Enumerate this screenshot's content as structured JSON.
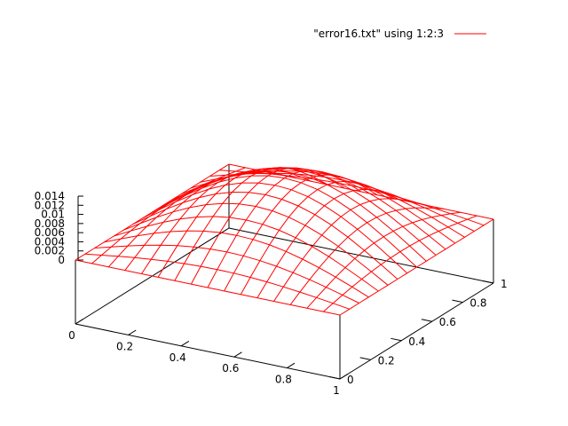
{
  "chart_data": {
    "type": "surface",
    "legend": {
      "label": "\"error16.txt\" using 1:2:3",
      "placement": "top-right",
      "color": "#ff0000"
    },
    "x": {
      "range": [
        0,
        1
      ],
      "ticks": [
        "0",
        "0.2",
        "0.4",
        "0.6",
        "0.8",
        "1"
      ]
    },
    "y": {
      "range": [
        0,
        1
      ],
      "ticks": [
        "0",
        "0.2",
        "0.4",
        "0.6",
        "0.8",
        "1"
      ]
    },
    "z": {
      "range": [
        0,
        0.014
      ],
      "ticks": [
        "0",
        "0.002",
        "0.004",
        "0.006",
        "0.008",
        "0.01",
        "0.012",
        "0.014"
      ]
    },
    "grid": false,
    "mesh": {
      "n": 17,
      "peak": 0.0135,
      "function": "z = peak * sin(pi*x) * sin(pi*y)"
    },
    "line_color": "#ff0000"
  }
}
